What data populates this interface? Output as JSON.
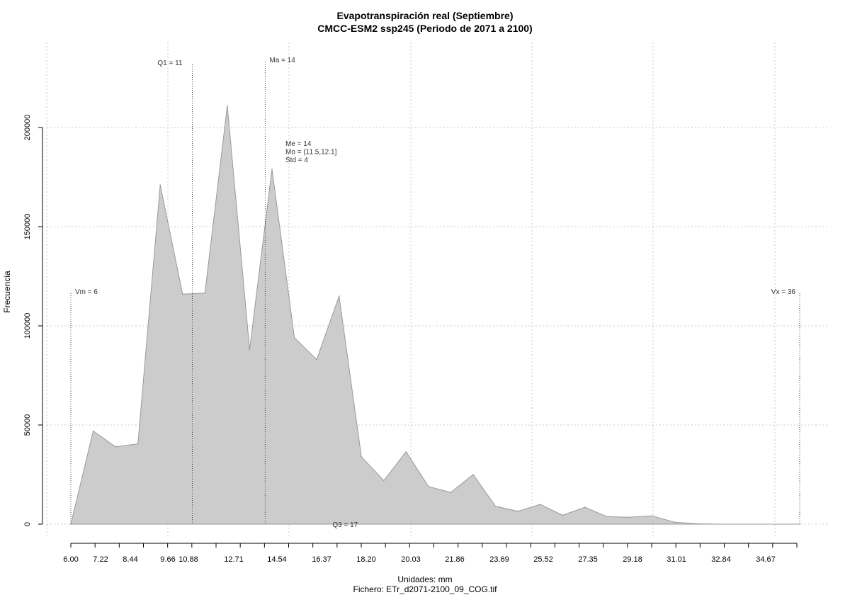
{
  "chart_data": {
    "type": "area",
    "title": "Evapotranspiración real (Septiembre)",
    "subtitle": "CMCC-ESM2 ssp245 (Periodo de 2071 a 2100)",
    "xlabel": "Unidades: mm",
    "ylabel": "Frecuencia",
    "file_caption": "Fichero: ETr_d2071-2100_09_COG.tif",
    "xlim": [
      6.0,
      36.0
    ],
    "ylim": [
      0,
      230000
    ],
    "x_ticks": [
      "6.00",
      "7.22",
      "8.44",
      "9.66",
      "10.88",
      "12.71",
      "14.54",
      "16.37",
      "18.20",
      "20.03",
      "21.86",
      "23.69",
      "25.52",
      "27.35",
      "29.18",
      "31.01",
      "32.84",
      "34.67"
    ],
    "y_ticks": [
      "0",
      "50000",
      "100000",
      "150000",
      "200000"
    ],
    "grid": true,
    "fill_color": "#cccccc",
    "line_color": "#999999",
    "x": [
      6.0,
      6.92,
      7.84,
      8.76,
      9.68,
      10.6,
      11.52,
      12.44,
      13.36,
      14.28,
      15.2,
      16.12,
      17.04,
      17.96,
      18.88,
      19.8,
      20.72,
      21.64,
      22.56,
      23.48,
      24.4,
      25.32,
      26.24,
      27.16,
      28.08,
      29.0,
      29.92,
      30.84,
      31.76,
      32.68,
      33.6,
      34.52,
      35.44,
      36.0
    ],
    "values": [
      0,
      47000,
      39000,
      40500,
      171000,
      116000,
      116500,
      211000,
      88000,
      179000,
      94000,
      83000,
      115000,
      34000,
      22000,
      36500,
      19000,
      16000,
      25000,
      9000,
      6500,
      10000,
      4500,
      8500,
      3800,
      3500,
      4200,
      1000,
      200,
      0,
      0,
      0,
      0,
      0
    ],
    "stat_lines": [
      {
        "label": "Vm = 6",
        "x": 6.0
      },
      {
        "label": "Q1 = 11",
        "x": 11.0
      },
      {
        "label": "Ma = 14",
        "x": 14.0
      },
      {
        "label": "Q3 = 17",
        "x": 17.0
      },
      {
        "label": "Vx = 36",
        "x": 36.0
      }
    ],
    "stats_text": [
      "Me = 14",
      "Mo = (11.5,12.1]",
      "Std = 4"
    ]
  }
}
